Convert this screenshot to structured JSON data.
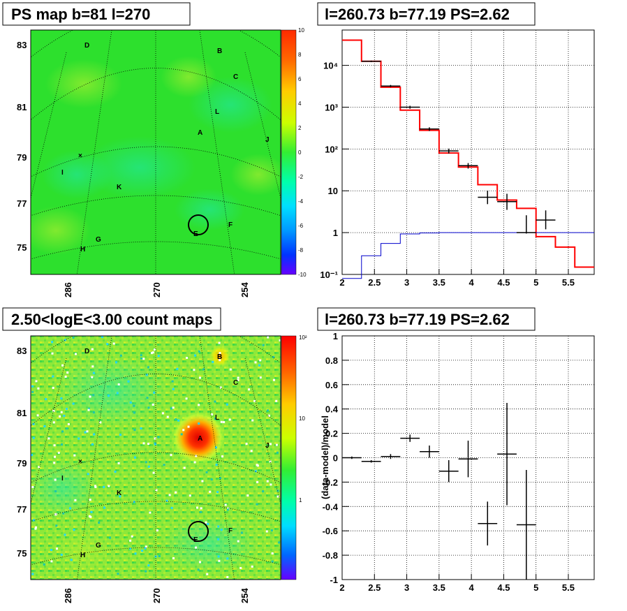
{
  "panels": {
    "ps_map": {
      "title": "PS map b=81 l=270",
      "lat_ticks": [
        "83",
        "81",
        "79",
        "77",
        "75"
      ],
      "lon_ticks": [
        "286",
        "270",
        "254"
      ],
      "color_scale": {
        "min": -10,
        "max": 10,
        "labels": [
          "10",
          "8",
          "6",
          "4",
          "2",
          "0",
          "-2",
          "-4",
          "-6",
          "-8",
          "-10"
        ]
      }
    },
    "count_map": {
      "title": "2.50<logE<3.00 count maps",
      "lat_ticks": [
        "83",
        "81",
        "79",
        "77",
        "75"
      ],
      "lon_ticks": [
        "286",
        "270",
        "254"
      ],
      "color_scale": {
        "labels": [
          "10²",
          "10",
          "1"
        ]
      }
    },
    "spectrum": {
      "title": "l=260.73 b=77.19 PS=2.62"
    },
    "residual": {
      "title": "l=260.73 b=77.19 PS=2.62",
      "ylabel": "(data-model)/model"
    }
  },
  "sources": [
    "A",
    "B",
    "C",
    "D",
    "E",
    "F",
    "G",
    "H",
    "I",
    "J",
    "K",
    "L"
  ],
  "colors": {
    "model": "#ff0000",
    "signal": "#0000cc",
    "data": "#000000",
    "map_bg": "#2de02d"
  },
  "chart_data": [
    {
      "type": "line",
      "title": "l=260.73 b=77.19 PS=2.62",
      "yscale": "log",
      "xlim": [
        2,
        5.9
      ],
      "ylim": [
        0.1,
        70000
      ],
      "x_ticks": [
        "2",
        "2.5",
        "3",
        "3.5",
        "4",
        "4.5",
        "5",
        "5.5"
      ],
      "y_ticks": [
        "10⁻¹",
        "1",
        "10",
        "10²",
        "10³",
        "10⁴"
      ],
      "series": [
        {
          "name": "",
          "style": "step-red",
          "edges": [
            2.0,
            2.3,
            2.6,
            2.9,
            3.2,
            3.5,
            3.8,
            4.1,
            4.4,
            4.7,
            5.0,
            5.3,
            5.6,
            5.9
          ],
          "values": [
            40000,
            12500,
            3000,
            850,
            280,
            80,
            37,
            14,
            6,
            3.8,
            0.8,
            0.45,
            0.15
          ]
        },
        {
          "name": "",
          "style": "step-blue",
          "edges": [
            2.0,
            2.3,
            2.6,
            2.9,
            3.2,
            3.5,
            3.8,
            4.1,
            4.4,
            4.7,
            5.0,
            5.3,
            5.6,
            5.9
          ],
          "values": [
            0.08,
            0.28,
            0.55,
            0.93,
            0.98,
            1.0,
            1.0,
            1.0,
            1.0,
            1.0,
            1.0,
            1.0,
            1.0
          ]
        },
        {
          "name": "",
          "style": "points",
          "x": [
            2.45,
            2.75,
            3.05,
            3.35,
            3.65,
            3.95,
            4.25,
            4.55,
            4.85,
            5.15
          ],
          "y": [
            12500,
            3200,
            1000,
            300,
            90,
            40,
            7,
            5.5,
            1.0,
            2.0
          ],
          "yerr_lo": [
            12000,
            3000,
            920,
            270,
            78,
            34,
            4.8,
            3.5,
            0.95,
            1.2
          ],
          "yerr_hi": [
            13000,
            3400,
            1080,
            330,
            102,
            46,
            10,
            8.5,
            2.6,
            3.4
          ],
          "xerr": 0.15
        }
      ]
    },
    {
      "type": "scatter",
      "title": "l=260.73 b=77.19 PS=2.62",
      "ylabel": "(data-model)/model",
      "xlim": [
        2,
        5.9
      ],
      "ylim": [
        -1,
        1
      ],
      "x_ticks": [
        "2",
        "2.5",
        "3",
        "3.5",
        "4",
        "4.5",
        "5",
        "5.5"
      ],
      "y_ticks": [
        "1",
        "0.8",
        "0.6",
        "0.4",
        "0.2",
        "0",
        "-0.2",
        "-0.4",
        "-0.6",
        "-0.8",
        "-1"
      ],
      "series": [
        {
          "name": "",
          "x": [
            2.15,
            2.45,
            2.75,
            3.05,
            3.35,
            3.65,
            3.95,
            4.25,
            4.55,
            4.85
          ],
          "y": [
            0.0,
            -0.03,
            0.01,
            0.16,
            0.05,
            -0.11,
            -0.01,
            -0.54,
            0.03,
            -0.55
          ],
          "yerr": [
            0.01,
            0.01,
            0.02,
            0.03,
            0.05,
            0.09,
            0.15,
            0.18,
            0.42,
            0.45
          ],
          "xerr": 0.15
        }
      ]
    }
  ]
}
